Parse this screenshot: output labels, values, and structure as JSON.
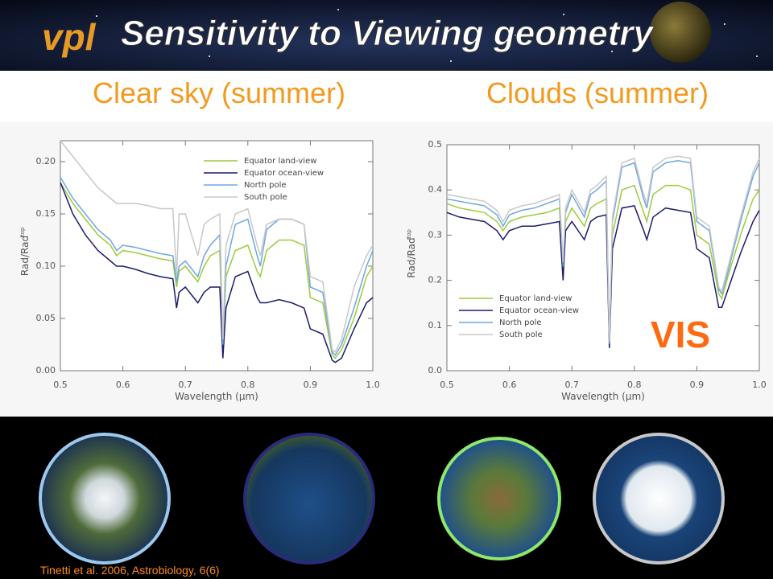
{
  "logo": "vpl",
  "title": "Sensitivity to Viewing geometry",
  "badge": "VIS",
  "citation": "Tinetti et al. 2006, Astrobiology, 6(6)",
  "chart_data": [
    {
      "type": "line",
      "title": "Clear sky (summer)",
      "xlabel": "Wavelength (μm)",
      "ylabel": "Rad/Rad",
      "ylabel_superscript": "top",
      "legend": "upper right",
      "xlim": [
        0.5,
        1.0
      ],
      "xticks": [
        0.5,
        0.6,
        0.7,
        0.8,
        0.9,
        {
          "value": 1.0,
          "label": "1.0"
        }
      ],
      "ylim": [
        0,
        0.22
      ],
      "yticks": [
        {
          "value": 0,
          "label": "0.00"
        },
        0.05,
        {
          "value": 0.1,
          "label": "0.10"
        },
        0.15,
        {
          "value": 0.2,
          "label": "0.20"
        }
      ],
      "x": [
        0.5,
        0.52,
        0.54,
        0.56,
        0.58,
        0.59,
        0.6,
        0.62,
        0.64,
        0.66,
        0.68,
        0.686,
        0.69,
        0.7,
        0.72,
        0.73,
        0.74,
        0.755,
        0.76,
        0.765,
        0.78,
        0.8,
        0.815,
        0.82,
        0.83,
        0.85,
        0.87,
        0.89,
        0.9,
        0.92,
        0.935,
        0.94,
        0.95,
        0.97,
        0.99,
        1.0
      ],
      "series": [
        {
          "name": "Equator land-view",
          "color": "#9ccc3c",
          "values": [
            0.18,
            0.16,
            0.145,
            0.13,
            0.12,
            0.11,
            0.115,
            0.113,
            0.11,
            0.107,
            0.105,
            0.08,
            0.095,
            0.1,
            0.085,
            0.1,
            0.11,
            0.115,
            0.02,
            0.09,
            0.115,
            0.12,
            0.095,
            0.09,
            0.115,
            0.125,
            0.125,
            0.12,
            0.07,
            0.065,
            0.015,
            0.012,
            0.02,
            0.05,
            0.09,
            0.1
          ]
        },
        {
          "name": "Equator ocean-view",
          "color": "#1c1c6e",
          "values": [
            0.18,
            0.15,
            0.13,
            0.115,
            0.105,
            0.1,
            0.1,
            0.097,
            0.093,
            0.09,
            0.088,
            0.06,
            0.075,
            0.08,
            0.065,
            0.075,
            0.08,
            0.08,
            0.012,
            0.06,
            0.09,
            0.095,
            0.07,
            0.065,
            0.065,
            0.068,
            0.065,
            0.06,
            0.04,
            0.035,
            0.01,
            0.008,
            0.012,
            0.04,
            0.065,
            0.07
          ]
        },
        {
          "name": "North pole",
          "color": "#6fa7e0",
          "values": [
            0.185,
            0.165,
            0.15,
            0.135,
            0.125,
            0.115,
            0.12,
            0.118,
            0.115,
            0.112,
            0.11,
            0.085,
            0.1,
            0.105,
            0.09,
            0.11,
            0.12,
            0.13,
            0.025,
            0.1,
            0.14,
            0.145,
            0.11,
            0.1,
            0.135,
            0.145,
            0.145,
            0.14,
            0.08,
            0.075,
            0.018,
            0.015,
            0.025,
            0.06,
            0.1,
            0.115
          ]
        },
        {
          "name": "South pole",
          "color": "#c8c8c8",
          "values": [
            0.22,
            0.205,
            0.19,
            0.175,
            0.165,
            0.16,
            0.16,
            0.16,
            0.158,
            0.155,
            0.155,
            0.09,
            0.15,
            0.15,
            0.11,
            0.14,
            0.145,
            0.15,
            0.03,
            0.12,
            0.15,
            0.155,
            0.12,
            0.11,
            0.14,
            0.145,
            0.145,
            0.14,
            0.09,
            0.085,
            0.02,
            0.018,
            0.03,
            0.08,
            0.11,
            0.12
          ]
        }
      ]
    },
    {
      "type": "line",
      "title": "Clouds (summer)",
      "xlabel": "Wavelength (μm)",
      "ylabel": "Rad/Rad",
      "ylabel_superscript": "top",
      "legend": "lower left",
      "xlim": [
        0.5,
        1.0
      ],
      "xticks": [
        0.5,
        0.6,
        0.7,
        0.8,
        0.9,
        {
          "value": 1.0,
          "label": "1.0"
        }
      ],
      "ylim": [
        0,
        0.5
      ],
      "yticks": [
        {
          "value": 0,
          "label": "0.0"
        },
        0.1,
        0.2,
        0.3,
        0.4,
        0.5
      ],
      "x": [
        0.5,
        0.52,
        0.54,
        0.56,
        0.58,
        0.59,
        0.6,
        0.62,
        0.64,
        0.66,
        0.68,
        0.686,
        0.69,
        0.7,
        0.72,
        0.73,
        0.74,
        0.755,
        0.76,
        0.765,
        0.78,
        0.8,
        0.815,
        0.82,
        0.83,
        0.85,
        0.87,
        0.89,
        0.9,
        0.92,
        0.935,
        0.94,
        0.95,
        0.97,
        0.99,
        1.0
      ],
      "series": [
        {
          "name": "Equator land-view",
          "color": "#9ccc3c",
          "values": [
            0.37,
            0.36,
            0.355,
            0.35,
            0.33,
            0.31,
            0.33,
            0.34,
            0.345,
            0.35,
            0.36,
            0.22,
            0.33,
            0.36,
            0.32,
            0.36,
            0.37,
            0.38,
            0.06,
            0.3,
            0.4,
            0.41,
            0.35,
            0.33,
            0.39,
            0.41,
            0.41,
            0.4,
            0.3,
            0.28,
            0.17,
            0.16,
            0.21,
            0.3,
            0.38,
            0.4
          ]
        },
        {
          "name": "Equator ocean-view",
          "color": "#1c1c6e",
          "values": [
            0.35,
            0.34,
            0.335,
            0.33,
            0.31,
            0.29,
            0.31,
            0.32,
            0.32,
            0.325,
            0.33,
            0.2,
            0.31,
            0.33,
            0.29,
            0.33,
            0.34,
            0.345,
            0.05,
            0.27,
            0.36,
            0.365,
            0.31,
            0.29,
            0.34,
            0.36,
            0.355,
            0.35,
            0.27,
            0.25,
            0.14,
            0.14,
            0.18,
            0.26,
            0.33,
            0.355
          ]
        },
        {
          "name": "North pole",
          "color": "#6fa7e0",
          "values": [
            0.38,
            0.375,
            0.37,
            0.365,
            0.345,
            0.32,
            0.345,
            0.355,
            0.36,
            0.37,
            0.38,
            0.23,
            0.35,
            0.39,
            0.34,
            0.39,
            0.4,
            0.42,
            0.06,
            0.33,
            0.45,
            0.46,
            0.38,
            0.36,
            0.44,
            0.46,
            0.465,
            0.46,
            0.33,
            0.31,
            0.18,
            0.17,
            0.22,
            0.33,
            0.43,
            0.46
          ]
        },
        {
          "name": "South pole",
          "color": "#c8c8c8",
          "values": [
            0.39,
            0.385,
            0.38,
            0.375,
            0.355,
            0.33,
            0.355,
            0.365,
            0.37,
            0.38,
            0.39,
            0.24,
            0.36,
            0.4,
            0.35,
            0.4,
            0.41,
            0.43,
            0.065,
            0.34,
            0.46,
            0.47,
            0.39,
            0.37,
            0.45,
            0.47,
            0.475,
            0.47,
            0.34,
            0.32,
            0.185,
            0.175,
            0.23,
            0.34,
            0.44,
            0.47
          ]
        }
      ]
    }
  ]
}
